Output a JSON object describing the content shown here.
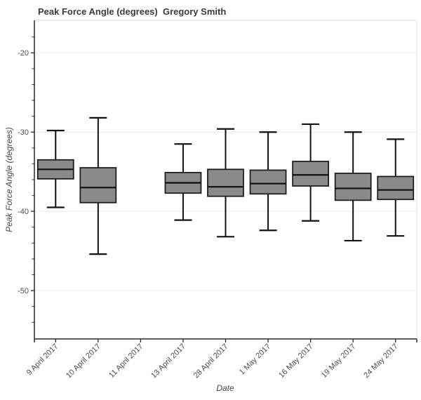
{
  "title": "Peak Force Angle (degrees)  Gregory Smith",
  "chart_data": {
    "type": "box",
    "title": "Peak Force Angle (degrees)  Gregory Smith",
    "xlabel": "Date",
    "ylabel": "Peak Force Angle (degrees)",
    "ylim": [
      -56.1,
      -15.9
    ],
    "yticks_major": [
      -20,
      -30,
      -40,
      -50
    ],
    "yticks_minor": [
      -18,
      -22,
      -24,
      -26,
      -28,
      -32,
      -34,
      -36,
      -38,
      -42,
      -44,
      -46,
      -48,
      -52,
      -54
    ],
    "grid": "horizontal-major-only",
    "legend": "none",
    "categories": [
      "9 April 2017",
      "10 April 2017",
      "11 April 2017",
      "13 April 2017",
      "28 April 2017",
      "1 May 2017",
      "16 May 2017",
      "19 May 2017",
      "24 May 2017"
    ],
    "boxes": [
      {
        "category": "9 April 2017",
        "low": -39.5,
        "q1": -35.9,
        "median": -34.7,
        "q3": -33.5,
        "high": -29.8
      },
      {
        "category": "10 April 2017",
        "low": -45.4,
        "q1": -38.9,
        "median": -37.0,
        "q3": -34.5,
        "high": -28.2
      },
      {
        "category": "11 April 2017",
        "low": null,
        "q1": null,
        "median": null,
        "q3": null,
        "high": null
      },
      {
        "category": "13 April 2017",
        "low": -41.1,
        "q1": -37.7,
        "median": -36.4,
        "q3": -35.1,
        "high": -31.5
      },
      {
        "category": "28 April 2017",
        "low": -43.2,
        "q1": -38.1,
        "median": -36.9,
        "q3": -34.7,
        "high": -29.6
      },
      {
        "category": "1 May 2017",
        "low": -42.4,
        "q1": -37.8,
        "median": -36.5,
        "q3": -34.8,
        "high": -30.0
      },
      {
        "category": "16 May 2017",
        "low": -41.2,
        "q1": -36.8,
        "median": -35.4,
        "q3": -33.7,
        "high": -29.0
      },
      {
        "category": "19 May 2017",
        "low": -43.7,
        "q1": -38.6,
        "median": -37.1,
        "q3": -35.2,
        "high": -30.0
      },
      {
        "category": "24 May 2017",
        "low": -43.1,
        "q1": -38.5,
        "median": -37.3,
        "q3": -35.6,
        "high": -30.9
      }
    ],
    "colors": {
      "box_fill": "#8a8a8a",
      "box_stroke": "#1f1f1f",
      "whisker": "#111111",
      "median": "#111111",
      "axis": "#2a2a2a",
      "grid": "#ececec",
      "frame": "#e4e4e4",
      "title": "#3a3a3a",
      "tick_label": "#4d4d4d",
      "background": "#ffffff"
    }
  }
}
